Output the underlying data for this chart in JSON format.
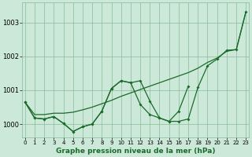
{
  "title": "Graphe pression niveau de la mer (hPa)",
  "background_color": "#cce8d8",
  "grid_color": "#88bb99",
  "line_color": "#1a6b2a",
  "x_ticks": [
    0,
    1,
    2,
    3,
    4,
    5,
    6,
    7,
    8,
    9,
    10,
    11,
    12,
    13,
    14,
    15,
    16,
    17,
    18,
    19,
    20,
    21,
    22,
    23
  ],
  "y_ticks": [
    1000,
    1001,
    1002,
    1003
  ],
  "ylim": [
    999.6,
    1003.6
  ],
  "xlim": [
    -0.3,
    23.3
  ],
  "series": {
    "line_wavy_full": {
      "x": [
        0,
        1,
        2,
        3,
        4,
        5,
        6,
        7,
        8,
        9,
        10,
        11,
        12,
        13,
        14,
        15,
        16,
        17,
        18,
        19,
        20,
        21,
        22,
        23
      ],
      "y": [
        1000.65,
        1000.18,
        1000.15,
        1000.22,
        1000.02,
        999.78,
        999.92,
        1000.0,
        1000.38,
        1001.05,
        1001.28,
        1001.22,
        1001.28,
        1000.68,
        1000.18,
        1000.08,
        1000.08,
        1000.15,
        1001.08,
        1001.72,
        1001.92,
        1002.18,
        1002.2,
        1003.32
      ],
      "has_marker": true
    },
    "line_wavy_partial": {
      "x": [
        0,
        1,
        2,
        3,
        4,
        5,
        6,
        7,
        8,
        9,
        10,
        11,
        12,
        13,
        14,
        15,
        16,
        17
      ],
      "y": [
        1000.65,
        1000.18,
        1000.15,
        1000.22,
        1000.02,
        999.78,
        999.92,
        1000.0,
        1000.38,
        1001.05,
        1001.28,
        1001.22,
        1000.58,
        1000.28,
        1000.18,
        1000.08,
        1000.38,
        1001.12
      ],
      "has_marker": true
    },
    "line_straight": {
      "x": [
        0,
        1,
        2,
        3,
        4,
        5,
        6,
        7,
        8,
        9,
        10,
        11,
        12,
        13,
        14,
        15,
        16,
        17,
        18,
        19,
        20,
        21,
        22,
        23
      ],
      "y": [
        1000.65,
        1000.28,
        1000.28,
        1000.32,
        1000.32,
        1000.35,
        1000.42,
        1000.5,
        1000.6,
        1000.7,
        1000.82,
        1000.92,
        1001.02,
        1001.12,
        1001.22,
        1001.32,
        1001.42,
        1001.52,
        1001.65,
        1001.82,
        1001.95,
        1002.15,
        1002.2,
        1003.32
      ],
      "has_marker": false
    }
  }
}
